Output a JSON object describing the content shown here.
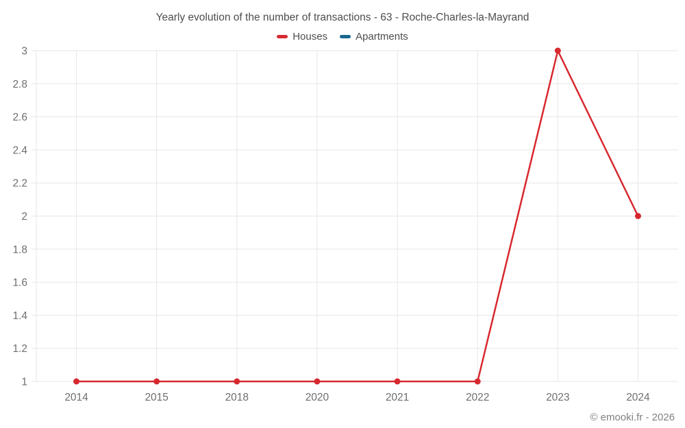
{
  "chart_data": {
    "type": "line",
    "title": "Yearly evolution of the number of transactions - 63 - Roche-Charles-la-Mayrand",
    "footer": "© emooki.fr - 2026",
    "categories": [
      "2014",
      "2015",
      "2018",
      "2020",
      "2021",
      "2022",
      "2023",
      "2024"
    ],
    "series": [
      {
        "name": "Houses",
        "color": "#d7282f",
        "values": [
          1,
          1,
          1,
          1,
          1,
          1,
          3,
          2
        ]
      },
      {
        "name": "Apartments",
        "color": "#17678f",
        "values": []
      }
    ],
    "yaxis": {
      "min": 1,
      "max": 3,
      "ticks": [
        "1",
        "1.2",
        "1.4",
        "1.6",
        "1.8",
        "2",
        "2.2",
        "2.4",
        "2.6",
        "2.8",
        "3"
      ]
    },
    "xlabel": "",
    "ylabel": "",
    "grid": true,
    "legend_position": "top",
    "colors": {
      "grid": "#e6e6e6",
      "axis_label": "#6e6e6e",
      "title": "#4d4d4d",
      "footer": "#808080",
      "background": "#ffffff"
    }
  }
}
